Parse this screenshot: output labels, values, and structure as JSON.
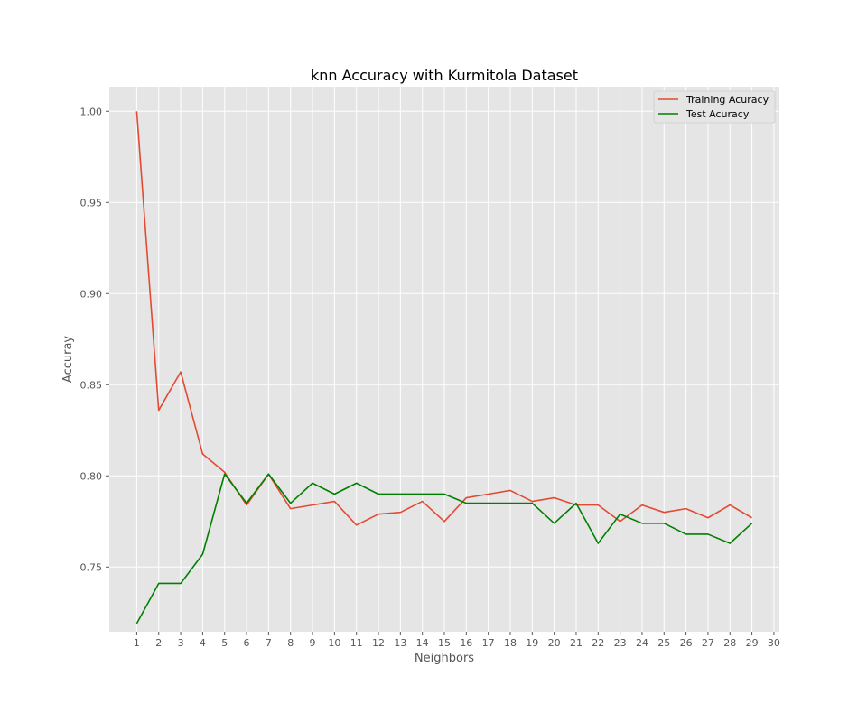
{
  "chart_data": {
    "type": "line",
    "title": "knn Accuracy with Kurmitola Dataset",
    "xlabel": "Neighbors",
    "ylabel": "Accuray",
    "xlim": [
      -0.25,
      30.25
    ],
    "ylim": [
      0.7145,
      1.0135
    ],
    "xticks": [
      1,
      2,
      3,
      4,
      5,
      6,
      7,
      8,
      9,
      10,
      11,
      12,
      13,
      14,
      15,
      16,
      17,
      18,
      19,
      20,
      21,
      22,
      23,
      24,
      25,
      26,
      27,
      28,
      29,
      30
    ],
    "yticks": [
      0.75,
      0.8,
      0.85,
      0.9,
      0.95,
      1.0
    ],
    "ytick_labels": [
      "0.75",
      "0.80",
      "0.85",
      "0.90",
      "0.95",
      "1.00"
    ],
    "grid": true,
    "legend_position": "top-right",
    "x": [
      1,
      2,
      3,
      4,
      5,
      6,
      7,
      8,
      9,
      10,
      11,
      12,
      13,
      14,
      15,
      16,
      17,
      18,
      19,
      20,
      21,
      22,
      23,
      24,
      25,
      26,
      27,
      28,
      29
    ],
    "series": [
      {
        "name": "Training Acuracy",
        "color": "#e24a33",
        "values": [
          1.0,
          0.836,
          0.857,
          0.812,
          0.802,
          0.784,
          0.801,
          0.782,
          0.784,
          0.786,
          0.773,
          0.779,
          0.78,
          0.786,
          0.775,
          0.788,
          0.79,
          0.792,
          0.786,
          0.788,
          0.784,
          0.784,
          0.775,
          0.784,
          0.78,
          0.782,
          0.777,
          0.784,
          0.777
        ]
      },
      {
        "name": "Test Acuracy",
        "color": "#008000",
        "values": [
          0.719,
          0.741,
          0.741,
          0.757,
          0.801,
          0.785,
          0.801,
          0.785,
          0.796,
          0.79,
          0.796,
          0.79,
          0.79,
          0.79,
          0.79,
          0.785,
          0.785,
          0.785,
          0.785,
          0.774,
          0.785,
          0.763,
          0.779,
          0.774,
          0.774,
          0.768,
          0.768,
          0.763,
          0.774
        ]
      }
    ]
  }
}
